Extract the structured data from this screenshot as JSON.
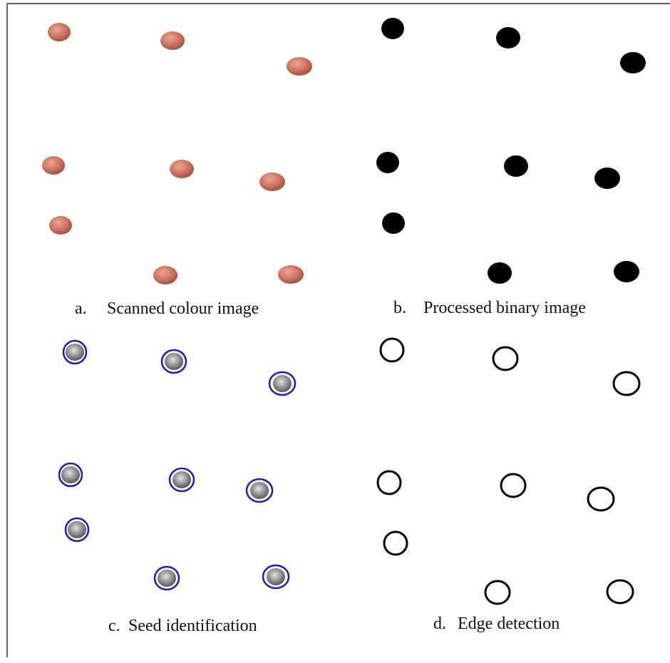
{
  "panels": [
    {
      "label": "a.",
      "caption": "Scanned colour image"
    },
    {
      "label": "b.",
      "caption": "Processed binary image"
    },
    {
      "label": "c.",
      "caption": "Seed identification"
    },
    {
      "label": "d.",
      "caption": "Edge detection"
    }
  ]
}
